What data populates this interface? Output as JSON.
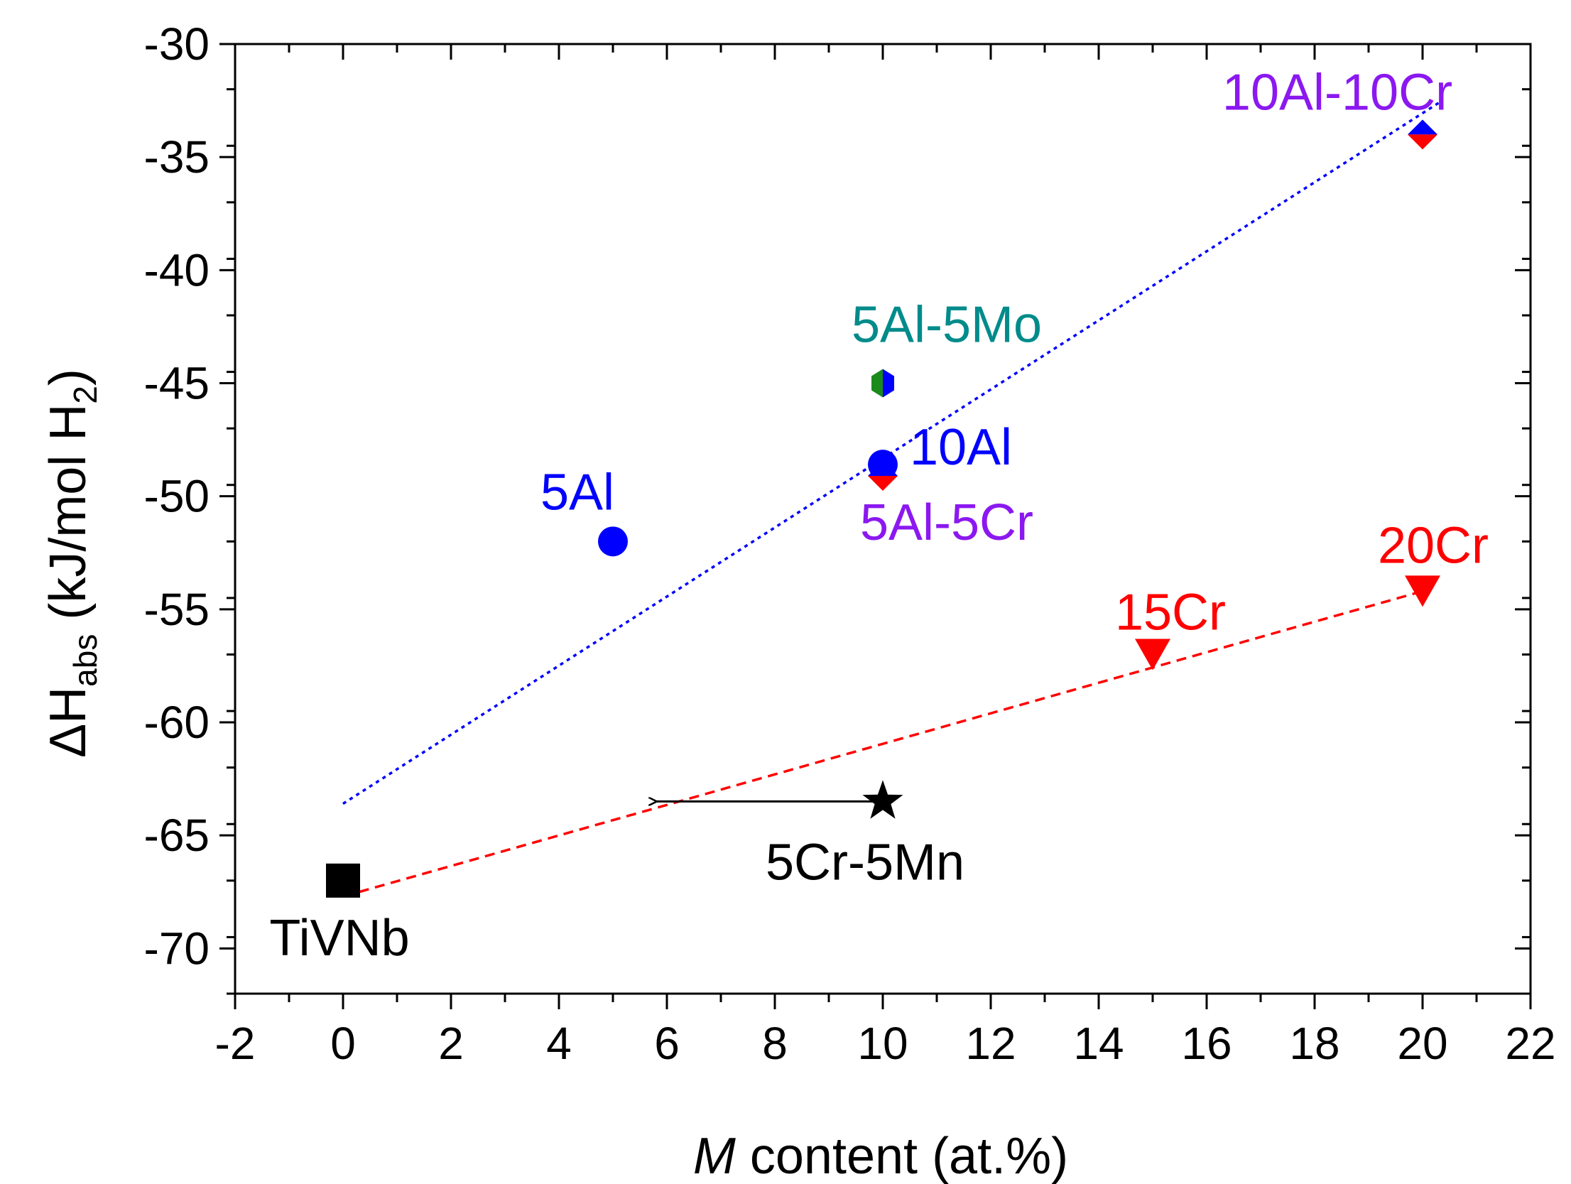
{
  "chart_data": {
    "type": "scatter",
    "title": "",
    "xlabel": {
      "italic": "M",
      "rest": " content (at.%)"
    },
    "ylabel": {
      "main": "ΔH",
      "sub1": "abs",
      "mid": " (kJ/mol H",
      "sub2": "2",
      "end": ")"
    },
    "xlim": [
      -2,
      22
    ],
    "ylim": [
      -72,
      -30
    ],
    "xticks": [
      -2,
      0,
      2,
      4,
      6,
      8,
      10,
      12,
      14,
      16,
      18,
      20,
      22
    ],
    "yticks": [
      -70,
      -65,
      -60,
      -55,
      -50,
      -45,
      -40,
      -35,
      -30
    ],
    "grid": false,
    "points": [
      {
        "label": "TiVNb",
        "x": 0,
        "y": -67,
        "marker": "square",
        "color": "#000000",
        "labelColor": "#000000"
      },
      {
        "label": "5Al",
        "x": 5,
        "y": -52,
        "marker": "circle",
        "color": "#0000ff",
        "labelColor": "#0000ff"
      },
      {
        "label": "10Al",
        "x": 10,
        "y": -48.6,
        "marker": "circle",
        "color": "#0000ff",
        "labelColor": "#0000ff"
      },
      {
        "label": "5Al-5Cr",
        "x": 10,
        "y": -49.1,
        "marker": "diamond-split",
        "colors": [
          "#0000ff",
          "#ff0000"
        ],
        "labelColor": "#8b18f0"
      },
      {
        "label": "5Al-5Mo",
        "x": 10,
        "y": -45,
        "marker": "hexagon-split",
        "colors": [
          "#1a8a1a",
          "#0000ff"
        ],
        "labelColor": "#008b8b"
      },
      {
        "label": "10Al-10Cr",
        "x": 20,
        "y": -34,
        "marker": "diamond-split",
        "colors": [
          "#0000ff",
          "#ff0000"
        ],
        "labelColor": "#8b18f0"
      },
      {
        "label": "15Cr",
        "x": 15,
        "y": -57,
        "marker": "triangle-down",
        "color": "#ff0000",
        "labelColor": "#ff0000"
      },
      {
        "label": "20Cr",
        "x": 20,
        "y": -54.2,
        "marker": "triangle-down",
        "color": "#ff0000",
        "labelColor": "#ff0000"
      },
      {
        "label": "5Cr-5Mn",
        "x": 10,
        "y": -63.5,
        "marker": "star",
        "color": "#000000",
        "labelColor": "#000000"
      }
    ],
    "fit_lines": [
      {
        "color": "#0000ff",
        "style": "dotted",
        "from": [
          0,
          -63.6
        ],
        "to": [
          20.3,
          -32.6
        ]
      },
      {
        "color": "#ff0000",
        "style": "dashed",
        "from": [
          0.3,
          -67.5
        ],
        "to": [
          20,
          -54.2
        ]
      }
    ],
    "arrow": {
      "color": "#000000",
      "from": [
        10,
        -63.5
      ],
      "to": [
        5.8,
        -63.5
      ]
    }
  }
}
